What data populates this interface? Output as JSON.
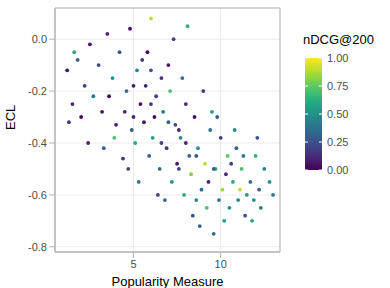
{
  "chart_data": {
    "type": "scatter",
    "x_label": "Popularity Measure",
    "y_label": "ECL",
    "xlim": [
      0.5,
      13.4
    ],
    "ylim": [
      -0.82,
      0.12
    ],
    "xticks": [
      5,
      10
    ],
    "yticks": [
      {
        "value": 0,
        "label": "0.0"
      },
      {
        "value": -0.2,
        "label": "-0.2"
      },
      {
        "value": -0.4,
        "label": "-0.4"
      },
      {
        "value": -0.6,
        "label": "-0.6"
      },
      {
        "value": -0.8,
        "label": "-0.8"
      }
    ],
    "grid": true,
    "marker": "circle",
    "x": [
      1.2,
      1.5,
      1.8,
      2.0,
      2.2,
      1.3,
      2.5,
      2.7,
      2.4,
      1.6,
      3.0,
      3.2,
      3.5,
      3.3,
      3.8,
      4.0,
      3.6,
      4.2,
      4.4,
      3.9,
      4.6,
      4.8,
      5.0,
      5.2,
      4.7,
      5.4,
      5.1,
      5.5,
      4.9,
      5.3,
      5.7,
      5.9,
      6.0,
      6.2,
      6.4,
      5.8,
      6.1,
      6.3,
      6.5,
      6.0,
      6.7,
      6.9,
      7.0,
      7.2,
      7.4,
      6.8,
      7.1,
      7.3,
      7.5,
      6.6,
      7.7,
      7.9,
      8.0,
      8.2,
      8.4,
      7.8,
      8.1,
      8.3,
      8.5,
      7.6,
      8.7,
      8.9,
      9.0,
      9.2,
      9.4,
      8.8,
      9.1,
      9.3,
      9.5,
      8.6,
      9.7,
      9.9,
      10.0,
      10.2,
      10.4,
      9.8,
      10.1,
      10.3,
      10.5,
      9.6,
      10.7,
      10.9,
      11.0,
      11.2,
      11.4,
      10.8,
      11.1,
      11.3,
      11.5,
      10.6,
      11.7,
      11.9,
      12.0,
      12.2,
      12.5,
      11.8,
      12.3,
      12.8,
      12.1,
      13.0,
      4.5,
      5.6,
      6.6,
      7.6,
      8.6,
      9.6,
      5.0,
      6.0,
      7.0,
      8.0
    ],
    "y": [
      -0.12,
      -0.25,
      -0.08,
      -0.3,
      -0.18,
      -0.32,
      -0.02,
      -0.22,
      -0.4,
      -0.05,
      -0.1,
      -0.28,
      0.02,
      -0.42,
      -0.15,
      -0.33,
      -0.22,
      -0.05,
      -0.46,
      -0.38,
      -0.2,
      0.04,
      -0.3,
      -0.12,
      -0.5,
      -0.25,
      -0.4,
      -0.08,
      -0.35,
      -0.55,
      -0.18,
      -0.45,
      0.08,
      -0.3,
      -0.6,
      -0.05,
      -0.38,
      -0.22,
      -0.5,
      -0.12,
      -0.28,
      -0.42,
      -0.1,
      -0.55,
      -0.33,
      -0.62,
      -0.2,
      0.0,
      -0.48,
      -0.15,
      -0.38,
      -0.6,
      -0.25,
      -0.45,
      -0.68,
      -0.15,
      0.05,
      -0.52,
      -0.3,
      -0.5,
      -0.42,
      -0.58,
      -0.2,
      -0.65,
      -0.35,
      -0.72,
      -0.48,
      -0.55,
      -0.28,
      -0.62,
      -0.5,
      -0.62,
      -0.38,
      -0.7,
      -0.45,
      -0.3,
      -0.58,
      -0.52,
      -0.65,
      -0.75,
      -0.55,
      -0.42,
      -0.62,
      -0.5,
      -0.68,
      -0.35,
      -0.58,
      -0.45,
      -0.6,
      -0.48,
      -0.55,
      -0.62,
      -0.45,
      -0.58,
      -0.5,
      -0.7,
      -0.65,
      -0.55,
      -0.38,
      -0.6,
      -0.28,
      -0.32,
      -0.4,
      -0.35,
      -0.45,
      -0.5,
      -0.18,
      -0.25,
      -0.32,
      -0.4
    ],
    "ndcg": [
      0.05,
      0.1,
      0.3,
      0.02,
      0.2,
      0.15,
      0.05,
      0.4,
      0.1,
      0.6,
      0.2,
      0.05,
      0.1,
      0.3,
      0.5,
      0.08,
      0.02,
      0.25,
      0.15,
      0.7,
      0.35,
      0.05,
      0.12,
      0.45,
      0.2,
      0.03,
      0.6,
      0.15,
      0.28,
      0.4,
      0.1,
      0.3,
      0.9,
      0.05,
      0.2,
      0.02,
      0.55,
      0.18,
      0.35,
      0.25,
      0.4,
      0.15,
      0.05,
      0.5,
      0.22,
      0.3,
      0.7,
      0.2,
      0.08,
      0.12,
      0.45,
      0.6,
      0.1,
      0.3,
      0.25,
      0.35,
      0.65,
      0.8,
      0.05,
      0.2,
      0.5,
      0.35,
      0.15,
      0.7,
      0.4,
      0.3,
      0.9,
      0.1,
      0.55,
      0.45,
      0.6,
      0.4,
      0.2,
      0.55,
      0.75,
      0.3,
      0.85,
      0.1,
      0.5,
      0.35,
      0.6,
      0.3,
      0.45,
      0.7,
      0.25,
      0.5,
      0.9,
      0.4,
      0.55,
      0.2,
      0.35,
      0.5,
      0.65,
      0.3,
      0.45,
      0.6,
      0.4,
      0.5,
      0.25,
      0.4,
      0.1,
      0.05,
      0.2,
      0.1,
      0.25,
      0.3,
      0.08,
      0.15,
      0.3,
      0.12
    ],
    "colorbar": {
      "title": "nDCG@200",
      "range": [
        0,
        1
      ],
      "ticks": [
        {
          "value": 0,
          "label": "0.00"
        },
        {
          "value": 0.25,
          "label": "0.25"
        },
        {
          "value": 0.5,
          "label": "0.50"
        },
        {
          "value": 0.75,
          "label": "0.75"
        },
        {
          "value": 1,
          "label": "1.00"
        }
      ]
    }
  }
}
